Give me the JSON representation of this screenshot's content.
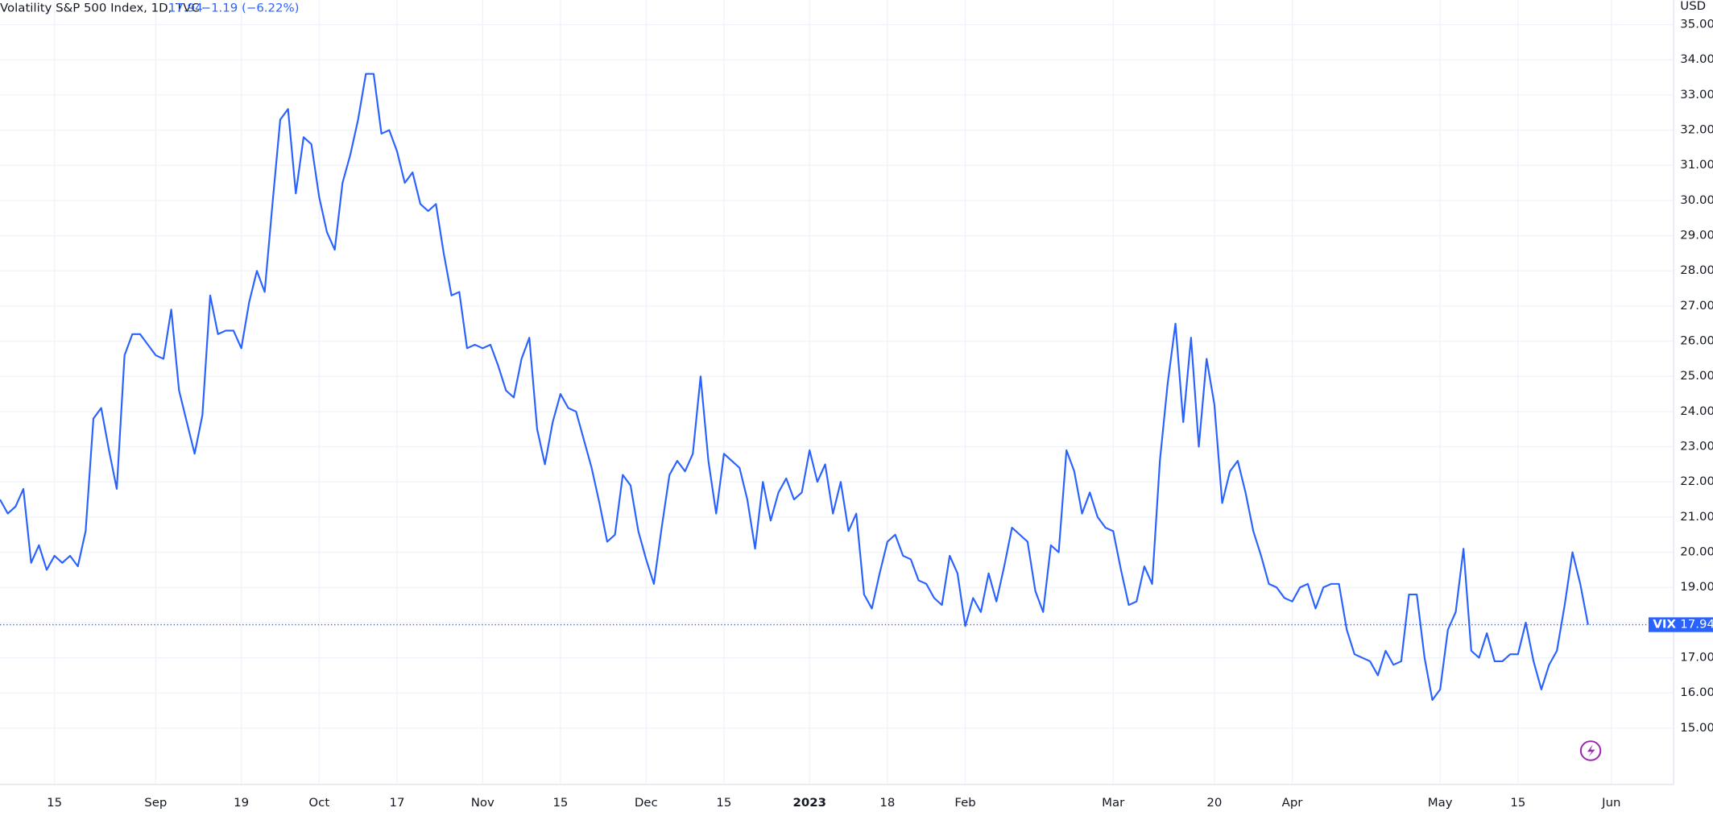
{
  "chart_data": {
    "type": "line",
    "title": "Volatility S&P 500 Index, 1D, TVC",
    "change": "−1.19 (−6.22%)",
    "currency": "USD",
    "symbol": "VIX",
    "series": [
      {
        "name": "VIX",
        "color": "#2962ff",
        "values": [
          21.5,
          21.1,
          21.3,
          21.8,
          19.7,
          20.2,
          19.5,
          19.9,
          19.7,
          19.9,
          19.6,
          20.6,
          23.8,
          24.1,
          22.9,
          21.8,
          25.6,
          26.2,
          26.2,
          25.9,
          25.6,
          25.5,
          26.9,
          24.6,
          23.7,
          22.8,
          23.9,
          27.3,
          26.2,
          26.3,
          26.3,
          25.8,
          27.1,
          28.0,
          27.4,
          29.9,
          32.3,
          32.6,
          30.2,
          31.8,
          31.6,
          30.1,
          29.1,
          28.6,
          30.5,
          31.3,
          32.3,
          33.6,
          33.6,
          31.9,
          32.0,
          31.4,
          30.5,
          30.8,
          29.9,
          29.7,
          29.9,
          28.5,
          27.3,
          27.4,
          25.8,
          25.9,
          25.8,
          25.9,
          25.3,
          24.6,
          24.4,
          25.5,
          26.1,
          23.5,
          22.5,
          23.7,
          24.5,
          24.1,
          24.0,
          23.2,
          22.4,
          21.4,
          20.3,
          20.5,
          22.2,
          21.9,
          20.6,
          19.8,
          19.1,
          20.7,
          22.2,
          22.6,
          22.3,
          22.8,
          25.0,
          22.6,
          21.1,
          22.8,
          22.6,
          22.4,
          21.5,
          20.1,
          22.0,
          20.9,
          21.7,
          22.1,
          21.5,
          21.7,
          22.9,
          22.0,
          22.5,
          21.1,
          22.0,
          20.6,
          21.1,
          18.8,
          18.4,
          19.4,
          20.3,
          20.5,
          19.9,
          19.8,
          19.2,
          19.1,
          18.7,
          18.5,
          19.9,
          19.4,
          17.9,
          18.7,
          18.3,
          19.4,
          18.6,
          19.6,
          20.7,
          20.5,
          20.3,
          18.9,
          18.3,
          20.2,
          20.0,
          22.9,
          22.3,
          21.1,
          21.7,
          21.0,
          20.7,
          20.6,
          19.5,
          18.5,
          18.6,
          19.6,
          19.1,
          22.6,
          24.8,
          26.5,
          23.7,
          26.1,
          23.0,
          25.5,
          24.2,
          21.4,
          22.3,
          22.6,
          21.7,
          20.6,
          19.9,
          19.1,
          19.0,
          18.7,
          18.6,
          19.0,
          19.1,
          18.4,
          19.0,
          19.1,
          19.1,
          17.8,
          17.1,
          17.0,
          16.9,
          16.5,
          17.2,
          16.8,
          16.9,
          18.8,
          18.8,
          17.0,
          15.8,
          16.1,
          17.8,
          18.3,
          20.1,
          17.2,
          17.0,
          17.7,
          16.9,
          16.9,
          17.1,
          17.1,
          18.0,
          16.9,
          16.1,
          16.8,
          17.2,
          18.5,
          20.0,
          19.1,
          17.94
        ]
      }
    ],
    "xlim": [
      0,
      215
    ],
    "xticks": [
      {
        "value": 7,
        "label": "15"
      },
      {
        "value": 20,
        "label": "Sep"
      },
      {
        "value": 31,
        "label": "19"
      },
      {
        "value": 41,
        "label": "Oct"
      },
      {
        "value": 51,
        "label": "17"
      },
      {
        "value": 62,
        "label": "Nov"
      },
      {
        "value": 72,
        "label": "15"
      },
      {
        "value": 83,
        "label": "Dec"
      },
      {
        "value": 93,
        "label": "15"
      },
      {
        "value": 104,
        "label": "2023"
      },
      {
        "value": 114,
        "label": "18"
      },
      {
        "value": 124,
        "label": "Feb"
      },
      {
        "value": 143,
        "label": "Mar"
      },
      {
        "value": 156,
        "label": "20"
      },
      {
        "value": 166,
        "label": "Apr"
      },
      {
        "value": 185,
        "label": "May"
      },
      {
        "value": 195,
        "label": "15"
      },
      {
        "value": 207,
        "label": "Jun"
      }
    ],
    "ylim": [
      13.4,
      35.7
    ],
    "yticks": [
      {
        "value": 15,
        "label": "15.00"
      },
      {
        "value": 16,
        "label": "16.00"
      },
      {
        "value": 17,
        "label": "17.00"
      },
      {
        "value": 18,
        "label": "18.00"
      },
      {
        "value": 19,
        "label": "19.00"
      },
      {
        "value": 20,
        "label": "20.00"
      },
      {
        "value": 21,
        "label": "21.00"
      },
      {
        "value": 22,
        "label": "22.00"
      },
      {
        "value": 23,
        "label": "23.00"
      },
      {
        "value": 24,
        "label": "24.00"
      },
      {
        "value": 25,
        "label": "25.00"
      },
      {
        "value": 26,
        "label": "26.00"
      },
      {
        "value": 27,
        "label": "27.00"
      },
      {
        "value": 28,
        "label": "28.00"
      },
      {
        "value": 29,
        "label": "29.00"
      },
      {
        "value": 30,
        "label": "30.00"
      },
      {
        "value": 31,
        "label": "31.00"
      },
      {
        "value": 32,
        "label": "32.00"
      },
      {
        "value": 33,
        "label": "33.00"
      },
      {
        "value": 34,
        "label": "34.00"
      },
      {
        "value": 35,
        "label": "35.00"
      }
    ],
    "grid": true
  }
}
